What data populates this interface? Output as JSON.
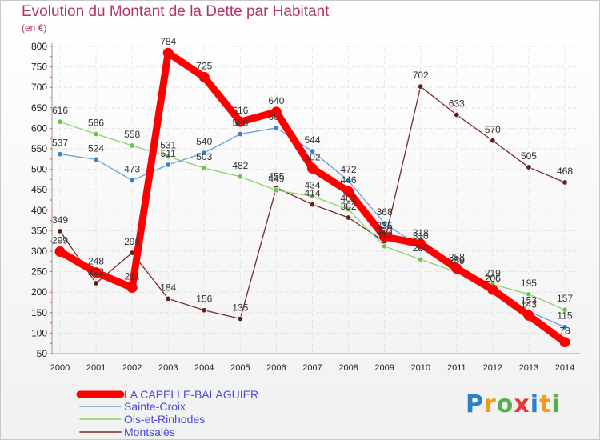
{
  "chart_data": {
    "type": "line",
    "title": "Evolution du Montant de la Dette par Habitant",
    "subtitle": "(en €)",
    "x": [
      "2000",
      "2001",
      "2002",
      "2003",
      "2004",
      "2005",
      "2006",
      "2007",
      "2008",
      "2009",
      "2010",
      "2011",
      "2012",
      "2013",
      "2014"
    ],
    "yticks": [
      50,
      100,
      150,
      200,
      250,
      300,
      350,
      400,
      450,
      500,
      550,
      600,
      650,
      700,
      750,
      800
    ],
    "ylim": [
      50,
      800
    ],
    "grid": true,
    "legend": "bottom-left",
    "series": [
      {
        "name": "LA CAPELLE-BALAGUIER",
        "color": "#ff0000",
        "marker": "#ff0000",
        "values": [
          299,
          248,
          211,
          784,
          725,
          616,
          640,
          502,
          446,
          335,
          318,
          258,
          206,
          143,
          78
        ]
      },
      {
        "name": "Sainte-Croix",
        "color": "#6a9fd4",
        "marker": "#3a7fc8",
        "values": [
          537,
          524,
          473,
          511,
          540,
          586,
          601,
          544,
          472,
          368,
          310,
          250,
          206,
          153,
          115
        ]
      },
      {
        "name": "Ols-et-Rinhodes",
        "color": "#8ed16a",
        "marker": "#6cc24a",
        "values": [
          616,
          586,
          558,
          531,
          503,
          482,
          449,
          434,
          402,
          312,
          280,
          249,
          219,
          195,
          157
        ]
      },
      {
        "name": "Montsalès",
        "color": "#7a2a2a",
        "marker": "#5e1f1f",
        "values": [
          349,
          222,
          296,
          184,
          156,
          135,
          455,
          414,
          382,
          323,
          702,
          633,
          570,
          505,
          468
        ]
      }
    ]
  },
  "logo_text": "Proxiti"
}
